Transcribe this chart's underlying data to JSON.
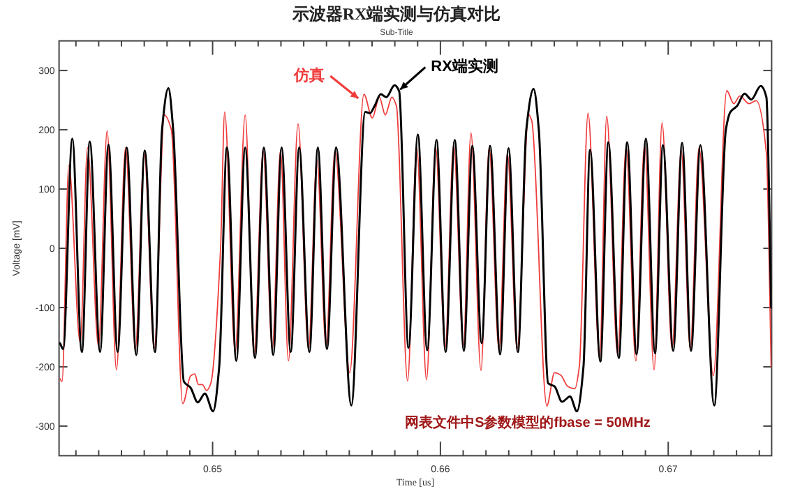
{
  "chart_data": {
    "type": "line",
    "title": "示波器RX端实测与仿真对比",
    "subtitle": "Sub-Title",
    "xlabel": "Time [us]",
    "ylabel": "Voltage [mV]",
    "xlim": [
      0.64326,
      0.67454
    ],
    "ylim": [
      -350,
      350
    ],
    "xticks": [
      {
        "value": 0.644,
        "label": null
      },
      {
        "value": 0.645,
        "label": null
      },
      {
        "value": 0.646,
        "label": null
      },
      {
        "value": 0.647,
        "label": null
      },
      {
        "value": 0.648,
        "label": null
      },
      {
        "value": 0.649,
        "label": null
      },
      0.65,
      {
        "value": 0.651,
        "label": null
      },
      {
        "value": 0.652,
        "label": null
      },
      {
        "value": 0.653,
        "label": null
      },
      {
        "value": 0.654,
        "label": null
      },
      {
        "value": 0.655,
        "label": null
      },
      {
        "value": 0.656,
        "label": null
      },
      {
        "value": 0.657,
        "label": null
      },
      {
        "value": 0.658,
        "label": null
      },
      {
        "value": 0.659,
        "label": null
      },
      0.66,
      {
        "value": 0.661,
        "label": null
      },
      {
        "value": 0.662,
        "label": null
      },
      {
        "value": 0.663,
        "label": null
      },
      {
        "value": 0.664,
        "label": null
      },
      {
        "value": 0.665,
        "label": null
      },
      {
        "value": 0.666,
        "label": null
      },
      {
        "value": 0.667,
        "label": null
      },
      {
        "value": 0.668,
        "label": null
      },
      {
        "value": 0.669,
        "label": null
      },
      0.67,
      {
        "value": 0.671,
        "label": null
      },
      {
        "value": 0.672,
        "label": null
      },
      {
        "value": 0.673,
        "label": null
      },
      {
        "value": 0.674,
        "label": null
      }
    ],
    "yticks": [
      -300,
      -200,
      -100,
      0,
      100,
      200,
      300
    ],
    "grid": false,
    "legend": false,
    "marker": "none",
    "line_style": "solid",
    "annotations": [
      "网表文件中S参数模型的fbase = 50MHz"
    ],
    "series": [
      {
        "name": "RX端实测",
        "color": "#000000",
        "x": [
          0.6433,
          0.64344,
          0.64384,
          0.64426,
          0.64461,
          0.64506,
          0.64543,
          0.64583,
          0.64623,
          0.64665,
          0.64702,
          0.64747,
          0.64778,
          0.64806,
          0.64827,
          0.64874,
          0.64903,
          0.64935,
          0.64966,
          0.65002,
          0.65029,
          0.65063,
          0.65104,
          0.65143,
          0.65186,
          0.65225,
          0.65266,
          0.65303,
          0.65343,
          0.6538,
          0.65425,
          0.65462,
          0.65502,
          0.65542,
          0.65609,
          0.6567,
          0.65691,
          0.65711,
          0.65738,
          0.65762,
          0.65799,
          0.65819,
          0.6586,
          0.65901,
          0.65942,
          0.65983,
          0.66023,
          0.66063,
          0.66103,
          0.6614,
          0.66181,
          0.66218,
          0.66262,
          0.66299,
          0.6634,
          0.66377,
          0.66409,
          0.66432,
          0.66473,
          0.66501,
          0.66534,
          0.66569,
          0.66599,
          0.66628,
          0.66657,
          0.66702,
          0.66737,
          0.66783,
          0.6682,
          0.66861,
          0.66902,
          0.66942,
          0.66977,
          0.67022,
          0.67061,
          0.671,
          0.67141,
          0.67202,
          0.67253,
          0.67273,
          0.67302,
          0.67335,
          0.67365,
          0.67406,
          0.67431,
          0.67452
        ],
        "values": [
          -160,
          -170,
          185,
          -175,
          180,
          -175,
          175,
          -175,
          170,
          -180,
          165,
          -175,
          200,
          270,
          200,
          -225,
          -235,
          -260,
          -245,
          -275,
          -200,
          170,
          -190,
          170,
          -185,
          170,
          -180,
          170,
          -175,
          170,
          -175,
          170,
          -170,
          170,
          -265,
          230,
          228,
          240,
          260,
          255,
          275,
          265,
          -168,
          192,
          -172,
          183,
          -175,
          183,
          -173,
          173,
          -160,
          173,
          -179,
          169,
          -175,
          200,
          269,
          200,
          -228,
          -233,
          -259,
          -250,
          -275,
          -200,
          166,
          -191,
          179,
          -185,
          179,
          -179,
          185,
          -177,
          174,
          -173,
          178,
          -173,
          174,
          -265,
          200,
          230,
          240,
          261,
          251,
          274,
          255,
          -100
        ]
      },
      {
        "name": "仿真",
        "color": "#f03c3c",
        "x": [
          0.6433,
          0.64339,
          0.64369,
          0.64419,
          0.64451,
          0.64499,
          0.64537,
          0.64578,
          0.64618,
          0.64661,
          0.647,
          0.64744,
          0.64788,
          0.64819,
          0.64869,
          0.64904,
          0.64922,
          0.64937,
          0.64955,
          0.64974,
          0.64992,
          0.65035,
          0.65053,
          0.65099,
          0.65143,
          0.65182,
          0.65222,
          0.65262,
          0.65298,
          0.65333,
          0.65375,
          0.65421,
          0.65458,
          0.65498,
          0.65537,
          0.65602,
          0.65664,
          0.65701,
          0.65732,
          0.65758,
          0.65787,
          0.65807,
          0.65856,
          0.65896,
          0.65939,
          0.65979,
          0.66021,
          0.66058,
          0.66101,
          0.66134,
          0.66178,
          0.66214,
          0.66257,
          0.66294,
          0.66337,
          0.66387,
          0.66401,
          0.66467,
          0.66501,
          0.66528,
          0.66559,
          0.6659,
          0.6661,
          0.66648,
          0.66699,
          0.6673,
          0.66778,
          0.66815,
          0.66858,
          0.66896,
          0.66938,
          0.66973,
          0.67017,
          0.67057,
          0.67097,
          0.67135,
          0.67198,
          0.67257,
          0.67288,
          0.67314,
          0.67355,
          0.67386,
          0.67431,
          0.67452
        ],
        "values": [
          -220,
          -225,
          140,
          -160,
          170,
          -165,
          198,
          -205,
          170,
          -170,
          160,
          -170,
          225,
          200,
          -262,
          -215,
          -212,
          -230,
          -230,
          -240,
          -228,
          0,
          230,
          -175,
          225,
          -180,
          165,
          -170,
          165,
          -190,
          210,
          -170,
          150,
          -165,
          165,
          -210,
          260,
          220,
          255,
          225,
          255,
          240,
          -224,
          170,
          -222,
          170,
          -168,
          175,
          -165,
          195,
          -206,
          170,
          -170,
          160,
          -170,
          226,
          215,
          -266,
          -210,
          -214,
          -233,
          -237,
          -199,
          228,
          -185,
          223,
          -180,
          170,
          -190,
          175,
          -205,
          212,
          -170,
          165,
          -170,
          170,
          -215,
          266,
          244,
          257,
          244,
          249,
          160,
          -200
        ]
      }
    ]
  }
}
